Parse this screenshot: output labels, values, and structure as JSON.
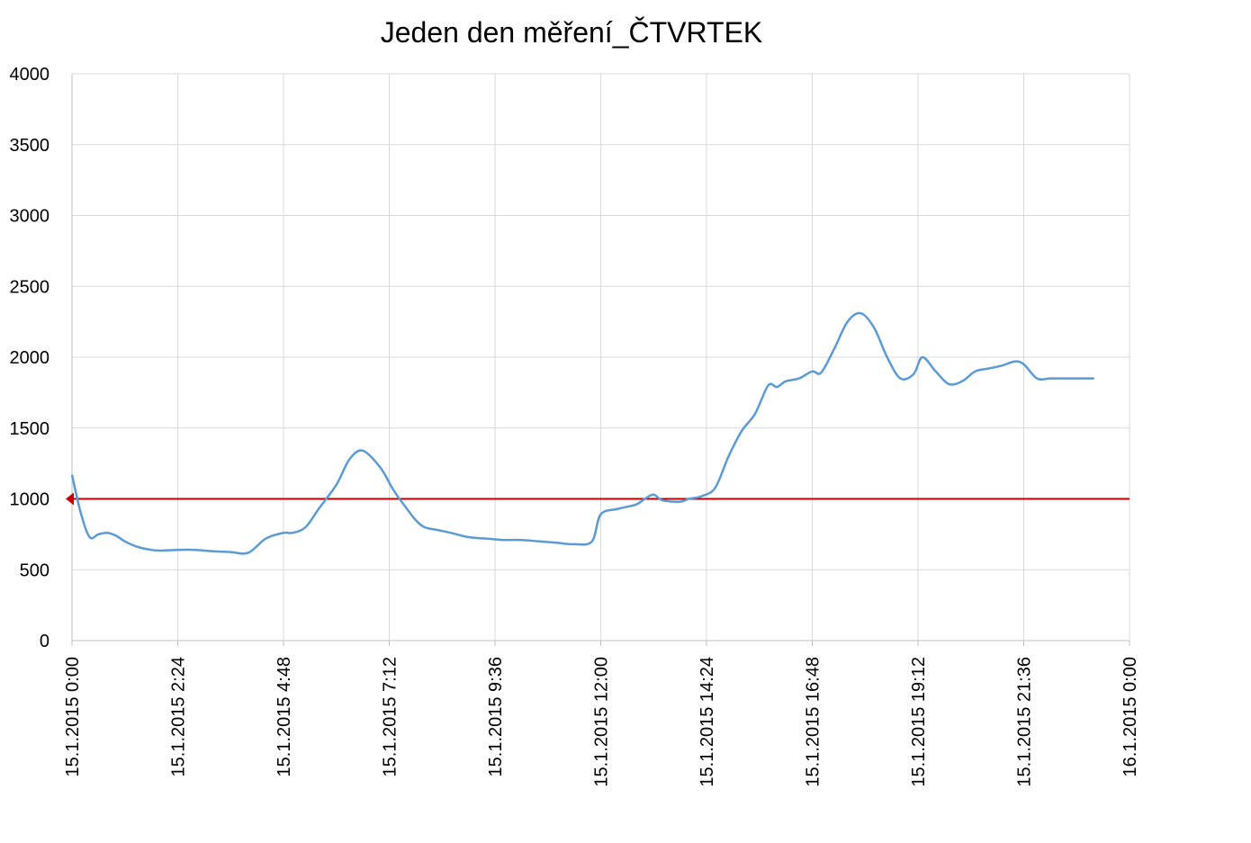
{
  "chart_data": {
    "type": "line",
    "title": "Jeden den měření_ČTVRTEK",
    "xlabel": "",
    "ylabel": "",
    "ylim": [
      0,
      4000
    ],
    "yticks": [
      0,
      500,
      1000,
      1500,
      2000,
      2500,
      3000,
      3500,
      4000
    ],
    "x_tick_labels": [
      "15.1.2015 0:00",
      "15.1.2015 2:24",
      "15.1.2015 4:48",
      "15.1.2015 7:12",
      "15.1.2015 9:36",
      "15.1.2015 12:00",
      "15.1.2015 14:24",
      "15.1.2015 16:48",
      "15.1.2015 19:12",
      "15.1.2015 21:36",
      "16.1.2015 0:00"
    ],
    "grid": true,
    "legend": "none",
    "colors": {
      "series": "#5b9bd5",
      "threshold": "#c00000",
      "grid": "#d9d9d9",
      "axis": "#bfbfbf"
    },
    "series": [
      {
        "hours": [
          0,
          0.2,
          0.4,
          0.6,
          0.8,
          1.0,
          1.2,
          1.5,
          1.8,
          2.0,
          2.4,
          2.8,
          3.2,
          3.6,
          4.0,
          4.4,
          4.8,
          5.0,
          5.3,
          5.6,
          6.0,
          6.3,
          6.6,
          7.0,
          7.3,
          7.6,
          7.8,
          8.0,
          8.3,
          8.6,
          9.0,
          9.4,
          9.8,
          10.2,
          10.6,
          11.0,
          11.4,
          11.8,
          12.0,
          12.4,
          12.8,
          13.0,
          13.2,
          13.4,
          13.8,
          14.0,
          14.3,
          14.6,
          14.9,
          15.2,
          15.5,
          15.8,
          16.0,
          16.2,
          16.5,
          16.8,
          17.0,
          17.3,
          17.6,
          17.9,
          18.2,
          18.5,
          18.8,
          19.1,
          19.3,
          19.6,
          19.9,
          20.2,
          20.5,
          20.8,
          21.1,
          21.4,
          21.6,
          21.9,
          22.2,
          22.5,
          22.8,
          23.0,
          23.2
        ],
        "values": [
          1170,
          900,
          730,
          750,
          760,
          740,
          700,
          660,
          640,
          635,
          640,
          640,
          630,
          625,
          620,
          720,
          760,
          760,
          800,
          930,
          1100,
          1280,
          1340,
          1220,
          1060,
          930,
          850,
          800,
          780,
          760,
          730,
          720,
          710,
          710,
          700,
          690,
          680,
          700,
          890,
          930,
          960,
          1000,
          1030,
          990,
          980,
          1000,
          1020,
          1080,
          1300,
          1480,
          1600,
          1800,
          1790,
          1830,
          1850,
          1900,
          1890,
          2060,
          2250,
          2310,
          2210,
          2000,
          1850,
          1880,
          2000,
          1900,
          1810,
          1830,
          1900,
          1920,
          1940,
          1970,
          1950,
          1850,
          1850,
          1850,
          1850,
          1850,
          1850
        ]
      }
    ],
    "threshold": {
      "value": 1000
    }
  }
}
